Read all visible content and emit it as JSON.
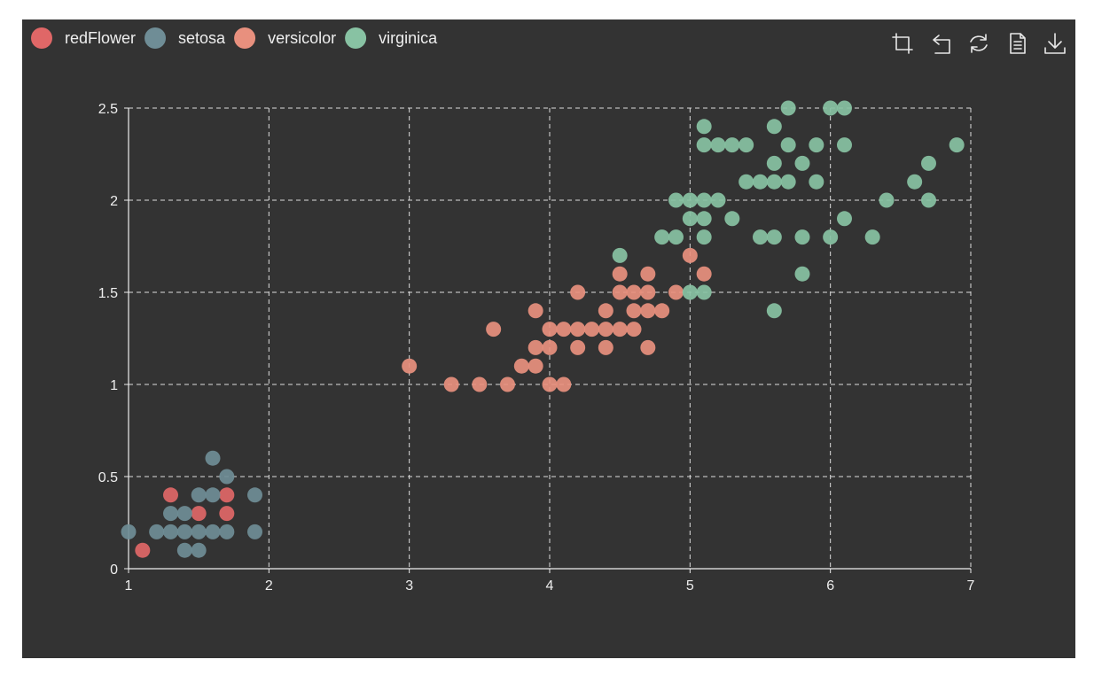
{
  "chart_data": {
    "type": "scatter",
    "title": "",
    "xlabel": "",
    "ylabel": "",
    "xlim": [
      1,
      7
    ],
    "ylim": [
      0,
      2.5
    ],
    "x_ticks": [
      "1",
      "2",
      "3",
      "4",
      "5",
      "6",
      "7"
    ],
    "y_ticks": [
      "0",
      "0.5",
      "1",
      "1.5",
      "2",
      "2.5"
    ],
    "grid": true,
    "legend": "top-left",
    "series": [
      {
        "name": "redFlower",
        "color": "#e06767",
        "points": [
          [
            1.1,
            0.1
          ],
          [
            1.3,
            0.4
          ],
          [
            1.5,
            0.3
          ],
          [
            1.7,
            0.4
          ],
          [
            1.7,
            0.3
          ]
        ]
      },
      {
        "name": "setosa",
        "color": "#6f8d96",
        "points": [
          [
            1.0,
            0.2
          ],
          [
            1.2,
            0.2
          ],
          [
            1.3,
            0.2
          ],
          [
            1.3,
            0.3
          ],
          [
            1.4,
            0.1
          ],
          [
            1.4,
            0.2
          ],
          [
            1.4,
            0.3
          ],
          [
            1.5,
            0.1
          ],
          [
            1.5,
            0.2
          ],
          [
            1.5,
            0.4
          ],
          [
            1.6,
            0.2
          ],
          [
            1.6,
            0.4
          ],
          [
            1.6,
            0.6
          ],
          [
            1.7,
            0.2
          ],
          [
            1.7,
            0.5
          ],
          [
            1.9,
            0.2
          ],
          [
            1.9,
            0.4
          ]
        ]
      },
      {
        "name": "versicolor",
        "color": "#e8907e",
        "points": [
          [
            3.0,
            1.1
          ],
          [
            3.3,
            1.0
          ],
          [
            3.5,
            1.0
          ],
          [
            3.6,
            1.3
          ],
          [
            3.7,
            1.0
          ],
          [
            3.8,
            1.1
          ],
          [
            3.9,
            1.1
          ],
          [
            3.9,
            1.2
          ],
          [
            3.9,
            1.4
          ],
          [
            4.0,
            1.0
          ],
          [
            4.0,
            1.2
          ],
          [
            4.0,
            1.3
          ],
          [
            4.1,
            1.0
          ],
          [
            4.1,
            1.3
          ],
          [
            4.2,
            1.2
          ],
          [
            4.2,
            1.3
          ],
          [
            4.2,
            1.5
          ],
          [
            4.3,
            1.3
          ],
          [
            4.4,
            1.2
          ],
          [
            4.4,
            1.3
          ],
          [
            4.4,
            1.4
          ],
          [
            4.5,
            1.3
          ],
          [
            4.5,
            1.5
          ],
          [
            4.5,
            1.6
          ],
          [
            4.6,
            1.3
          ],
          [
            4.6,
            1.4
          ],
          [
            4.6,
            1.5
          ],
          [
            4.7,
            1.2
          ],
          [
            4.7,
            1.4
          ],
          [
            4.7,
            1.5
          ],
          [
            4.7,
            1.6
          ],
          [
            4.8,
            1.4
          ],
          [
            4.9,
            1.5
          ],
          [
            5.0,
            1.7
          ],
          [
            5.1,
            1.6
          ]
        ]
      },
      {
        "name": "virginica",
        "color": "#88c2a3",
        "points": [
          [
            4.5,
            1.7
          ],
          [
            4.8,
            1.8
          ],
          [
            4.9,
            1.8
          ],
          [
            4.9,
            2.0
          ],
          [
            5.0,
            1.5
          ],
          [
            5.0,
            1.9
          ],
          [
            5.0,
            2.0
          ],
          [
            5.1,
            1.5
          ],
          [
            5.1,
            1.8
          ],
          [
            5.1,
            1.9
          ],
          [
            5.1,
            2.0
          ],
          [
            5.1,
            2.3
          ],
          [
            5.1,
            2.4
          ],
          [
            5.2,
            2.0
          ],
          [
            5.2,
            2.3
          ],
          [
            5.3,
            1.9
          ],
          [
            5.3,
            2.3
          ],
          [
            5.4,
            2.1
          ],
          [
            5.4,
            2.3
          ],
          [
            5.5,
            1.8
          ],
          [
            5.5,
            2.1
          ],
          [
            5.6,
            1.4
          ],
          [
            5.6,
            1.8
          ],
          [
            5.6,
            2.1
          ],
          [
            5.6,
            2.2
          ],
          [
            5.6,
            2.4
          ],
          [
            5.7,
            2.1
          ],
          [
            5.7,
            2.3
          ],
          [
            5.7,
            2.5
          ],
          [
            5.8,
            1.6
          ],
          [
            5.8,
            1.8
          ],
          [
            5.8,
            2.2
          ],
          [
            5.9,
            2.1
          ],
          [
            5.9,
            2.3
          ],
          [
            6.0,
            1.8
          ],
          [
            6.0,
            2.5
          ],
          [
            6.1,
            1.9
          ],
          [
            6.1,
            2.3
          ],
          [
            6.1,
            2.5
          ],
          [
            6.3,
            1.8
          ],
          [
            6.4,
            2.0
          ],
          [
            6.6,
            2.1
          ],
          [
            6.7,
            2.0
          ],
          [
            6.7,
            2.2
          ],
          [
            6.9,
            2.3
          ]
        ]
      }
    ]
  },
  "toolbox": {
    "icons": [
      "zoom-icon",
      "zoom-reset-icon",
      "restore-icon",
      "data-view-icon",
      "save-image-icon"
    ]
  },
  "theme": {
    "background": "#333333",
    "text": "#eeeeee",
    "grid": "#dddddd"
  }
}
